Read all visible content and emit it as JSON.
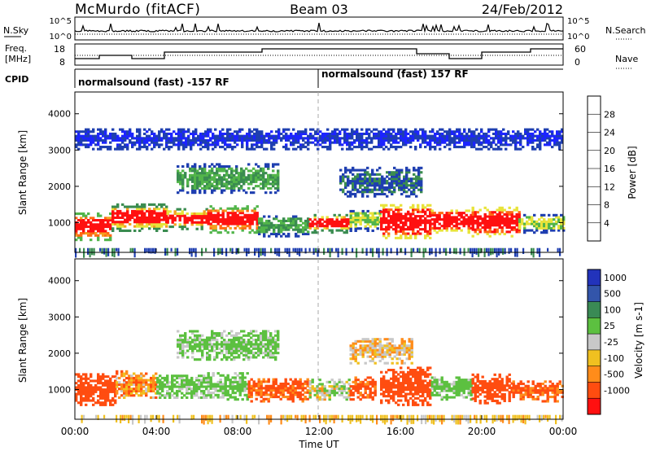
{
  "header": {
    "station": "McMurdo (fitACF)",
    "beam": "Beam 03",
    "date": "24/Feb/2012"
  },
  "top_panel": {
    "left_label": "N.Sky",
    "right_label": "N.Search",
    "y_ticks_left": [
      "10^5",
      "10^0"
    ],
    "y_ticks_right": [
      "10^5",
      "10^0"
    ]
  },
  "freq_panel": {
    "left_label_1": "Freq.",
    "left_label_2": "[MHz]",
    "right_label": "Nave",
    "y_ticks_left": [
      "18",
      "8"
    ],
    "y_ticks_right": [
      "60",
      "0"
    ]
  },
  "cpid": {
    "label": "CPID",
    "segments": [
      "normalsound (fast) -157 RF",
      "normalsound (fast) 157 RF"
    ]
  },
  "axes": {
    "xlabel": "Time UT",
    "x_ticks": [
      "00:00",
      "04:00",
      "08:00",
      "12:00",
      "16:00",
      "20:00",
      "00:00"
    ],
    "ylabel": "Slant Range [km]",
    "y_ticks": [
      "1000",
      "2000",
      "3000",
      "4000"
    ]
  },
  "power_colorbar": {
    "label": "Power [dB]",
    "ticks": [
      "4",
      "8",
      "12",
      "16",
      "20",
      "24",
      "28"
    ],
    "colors": [
      "#1c24ff",
      "#1f3fb0",
      "#3a8c50",
      "#52b54a",
      "#e8e33a",
      "#f5a020",
      "#ff6a14",
      "#ff1010"
    ]
  },
  "velocity_colorbar": {
    "label": "Velocity [m s-1]",
    "ticks": [
      "1000",
      "500",
      "100",
      "25",
      "-25",
      "-100",
      "-500",
      "-1000"
    ],
    "colors": [
      "#2233bb",
      "#3355aa",
      "#3a8a55",
      "#5cc040",
      "#c8c8c8",
      "#f0c020",
      "#ff8c1a",
      "#ff4d10",
      "#ff1010"
    ]
  },
  "chart_data": [
    {
      "type": "heatmap",
      "title": "Power",
      "xlabel": "Time UT",
      "ylabel": "Slant Range [km]",
      "xlim": [
        0,
        24
      ],
      "ylim": [
        180,
        4600
      ],
      "cbar_label": "Power [dB]",
      "cbar_ticks": [
        4,
        8,
        12,
        16,
        20,
        24,
        28
      ],
      "bands": [
        {
          "t0": 0.0,
          "t1": 1.8,
          "r0": 500,
          "r1": 1250,
          "v": 24
        },
        {
          "t0": 1.8,
          "t1": 4.5,
          "r0": 750,
          "r1": 1500,
          "v": 20
        },
        {
          "t0": 4.5,
          "t1": 6.5,
          "r0": 800,
          "r1": 1350,
          "v": 20
        },
        {
          "t0": 6.5,
          "t1": 9.0,
          "r0": 700,
          "r1": 1450,
          "v": 24
        },
        {
          "t0": 9.0,
          "t1": 11.5,
          "r0": 600,
          "r1": 1150,
          "v": 12
        },
        {
          "t0": 11.5,
          "t1": 13.5,
          "r0": 700,
          "r1": 1200,
          "v": 20
        },
        {
          "t0": 13.5,
          "t1": 15.0,
          "r0": 750,
          "r1": 1350,
          "v": 16
        },
        {
          "t0": 15.0,
          "t1": 17.5,
          "r0": 550,
          "r1": 1500,
          "v": 28
        },
        {
          "t0": 17.5,
          "t1": 19.5,
          "r0": 700,
          "r1": 1350,
          "v": 28
        },
        {
          "t0": 19.5,
          "t1": 21.8,
          "r0": 600,
          "r1": 1400,
          "v": 28
        },
        {
          "t0": 21.8,
          "t1": 24.0,
          "r0": 700,
          "r1": 1200,
          "v": 16
        },
        {
          "t0": 5.0,
          "t1": 10.0,
          "r0": 1800,
          "r1": 2600,
          "v": 12
        },
        {
          "t0": 13.0,
          "t1": 17.0,
          "r0": 1700,
          "r1": 2500,
          "v": 8
        },
        {
          "t0": 0.0,
          "t1": 24.0,
          "r0": 3000,
          "r1": 3600,
          "v": 4
        }
      ]
    },
    {
      "type": "heatmap",
      "title": "Velocity",
      "xlabel": "Time UT",
      "ylabel": "Slant Range [km]",
      "xlim": [
        0,
        24
      ],
      "ylim": [
        180,
        4600
      ],
      "cbar_label": "Velocity [m s-1]",
      "cbar_ticks": [
        1000,
        500,
        100,
        25,
        -25,
        -100,
        -500,
        -1000
      ],
      "bands": [
        {
          "t0": 0.0,
          "t1": 2.0,
          "r0": 550,
          "r1": 1450,
          "v": -300
        },
        {
          "t0": 2.0,
          "t1": 4.0,
          "r0": 750,
          "r1": 1500,
          "v": -50
        },
        {
          "t0": 4.0,
          "t1": 6.5,
          "r0": 750,
          "r1": 1400,
          "v": 150
        },
        {
          "t0": 6.5,
          "t1": 8.5,
          "r0": 700,
          "r1": 1450,
          "v": 150
        },
        {
          "t0": 8.5,
          "t1": 11.5,
          "r0": 650,
          "r1": 1300,
          "v": -150
        },
        {
          "t0": 11.5,
          "t1": 13.5,
          "r0": 700,
          "r1": 1250,
          "v": 60
        },
        {
          "t0": 13.5,
          "t1": 14.8,
          "r0": 700,
          "r1": 1350,
          "v": -150
        },
        {
          "t0": 15.0,
          "t1": 17.5,
          "r0": 550,
          "r1": 1600,
          "v": -300
        },
        {
          "t0": 17.5,
          "t1": 19.5,
          "r0": 700,
          "r1": 1350,
          "v": 150
        },
        {
          "t0": 19.5,
          "t1": 21.5,
          "r0": 600,
          "r1": 1400,
          "v": -300
        },
        {
          "t0": 21.5,
          "t1": 24.0,
          "r0": 650,
          "r1": 1250,
          "v": -150
        },
        {
          "t0": 5.0,
          "t1": 10.0,
          "r0": 1800,
          "r1": 2600,
          "v": 150
        },
        {
          "t0": 13.5,
          "t1": 16.5,
          "r0": 1700,
          "r1": 2400,
          "v": 0
        }
      ]
    }
  ]
}
